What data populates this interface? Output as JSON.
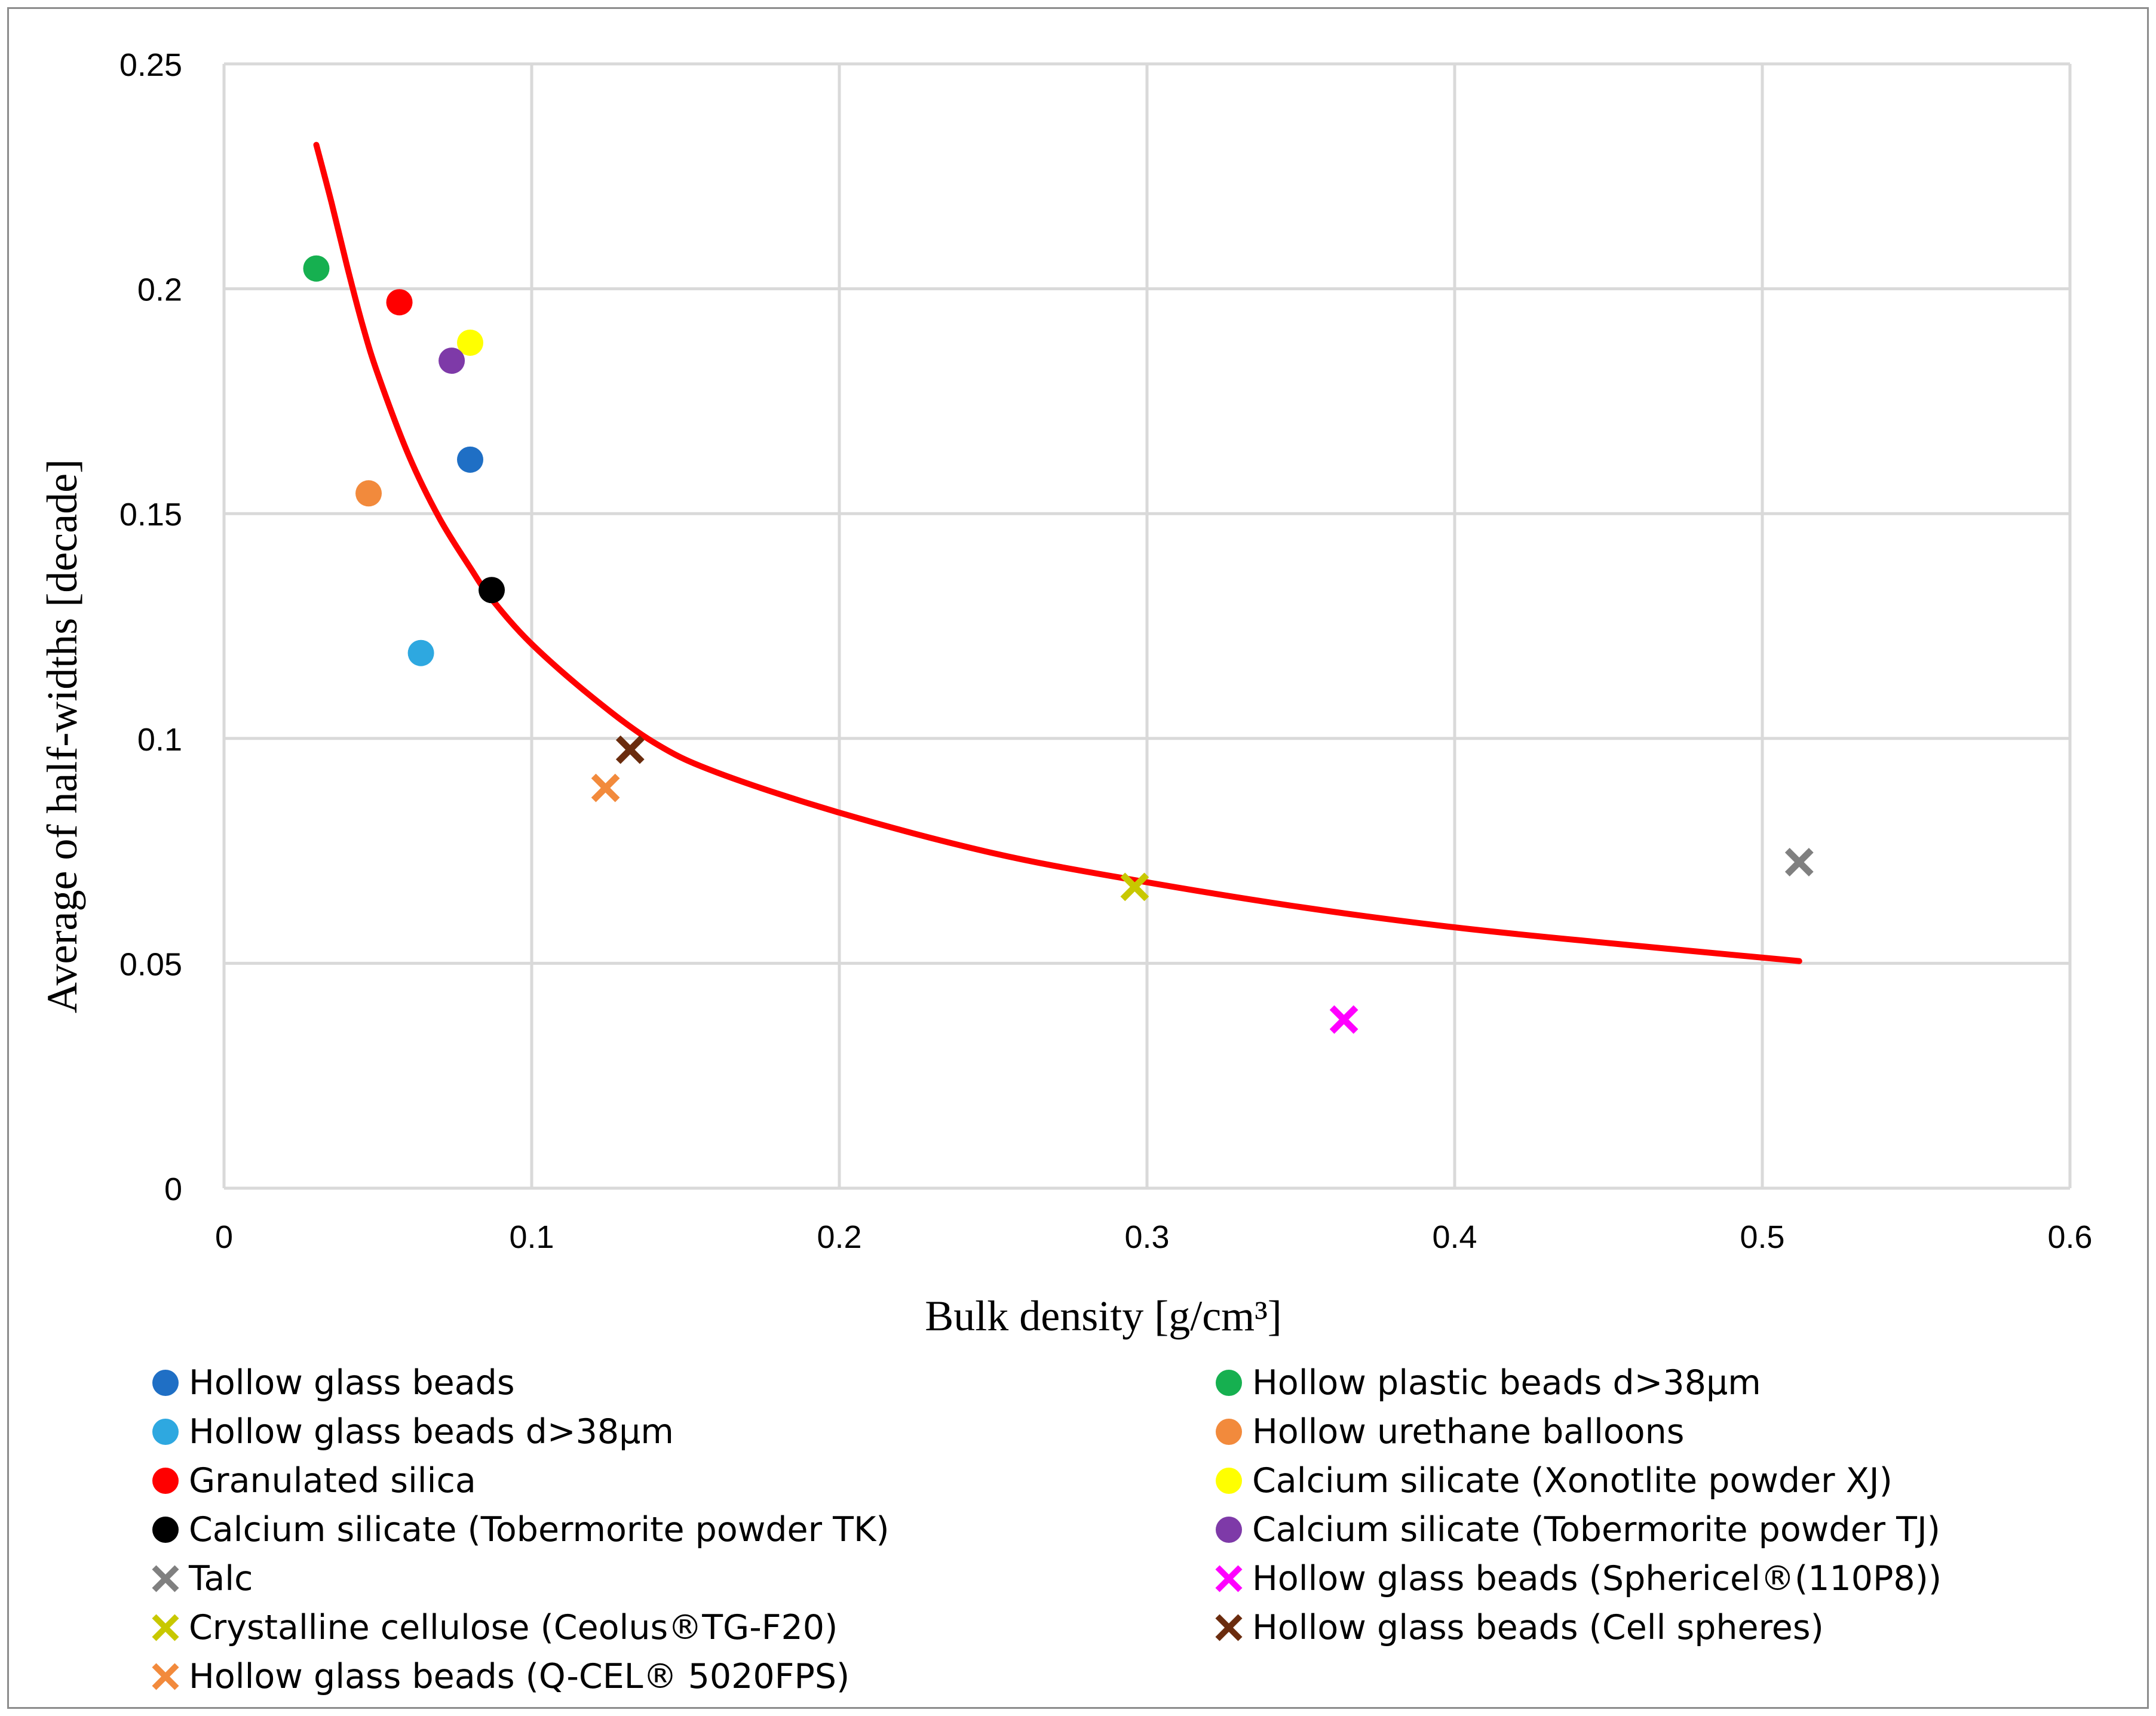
{
  "chart_data": {
    "type": "scatter",
    "title": "",
    "xlabel": "Bulk density [g/cm³]",
    "ylabel": "Average of half-widths [decade]",
    "xlim": [
      0,
      0.6
    ],
    "ylim": [
      0,
      0.25
    ],
    "xticks": [
      "0",
      "0.1",
      "0.2",
      "0.3",
      "0.4",
      "0.5",
      "0.6"
    ],
    "yticks": [
      "0",
      "0.05",
      "0.1",
      "0.15",
      "0.2",
      "0.25"
    ],
    "grid": true,
    "legend_position": "bottom",
    "series": [
      {
        "name": "Hollow glass beads",
        "marker": "circle",
        "color": "#1f6fc5",
        "x": 0.08,
        "y": 0.162
      },
      {
        "name": "Hollow plastic beads d>38µm",
        "marker": "circle",
        "color": "#16b050",
        "x": 0.03,
        "y": 0.2045
      },
      {
        "name": "Hollow glass beads d>38µm",
        "marker": "circle",
        "color": "#2ea8e0",
        "x": 0.064,
        "y": 0.119
      },
      {
        "name": "Hollow urethane balloons",
        "marker": "circle",
        "color": "#f28a3c",
        "x": 0.047,
        "y": 0.1545
      },
      {
        "name": "Granulated silica",
        "marker": "circle",
        "color": "#ff0000",
        "x": 0.057,
        "y": 0.197
      },
      {
        "name": "Calcium silicate (Xonotlite powder XJ)",
        "marker": "circle",
        "color": "#ffff00",
        "x": 0.08,
        "y": 0.188
      },
      {
        "name": "Calcium silicate (Tobermorite powder TK)",
        "marker": "circle",
        "color": "#000000",
        "x": 0.087,
        "y": 0.133
      },
      {
        "name": "Calcium silicate (Tobermorite powder TJ)",
        "marker": "circle",
        "color": "#7e3aa8",
        "x": 0.074,
        "y": 0.184
      },
      {
        "name": "Talc",
        "marker": "x",
        "color": "#808080",
        "x": 0.512,
        "y": 0.0725
      },
      {
        "name": "Hollow glass beads (Sphericel®(110P8))",
        "marker": "x",
        "color": "#ff00ff",
        "x": 0.364,
        "y": 0.0375
      },
      {
        "name": "Crystalline cellulose (Ceolus®TG-F20)",
        "marker": "x",
        "color": "#c8c800",
        "x": 0.296,
        "y": 0.067
      },
      {
        "name": "Hollow glass beads (Cell spheres)",
        "marker": "x",
        "color": "#6b2c0e",
        "x": 0.132,
        "y": 0.0975
      },
      {
        "name": "Hollow glass beads (Q-CEL® 5020FPS)",
        "marker": "x",
        "color": "#f28a3c",
        "x": 0.124,
        "y": 0.089
      }
    ],
    "fit_curve": {
      "color": "#ff0000",
      "x": [
        0.03,
        0.035,
        0.04,
        0.045,
        0.05,
        0.06,
        0.07,
        0.08,
        0.087,
        0.1,
        0.12,
        0.14,
        0.16,
        0.2,
        0.25,
        0.296,
        0.35,
        0.4,
        0.45,
        0.512
      ],
      "y": [
        0.232,
        0.219,
        0.205,
        0.192,
        0.181,
        0.163,
        0.149,
        0.138,
        0.131,
        0.121,
        0.109,
        0.099,
        0.0925,
        0.0835,
        0.0745,
        0.0685,
        0.0625,
        0.058,
        0.0545,
        0.0505
      ]
    }
  }
}
